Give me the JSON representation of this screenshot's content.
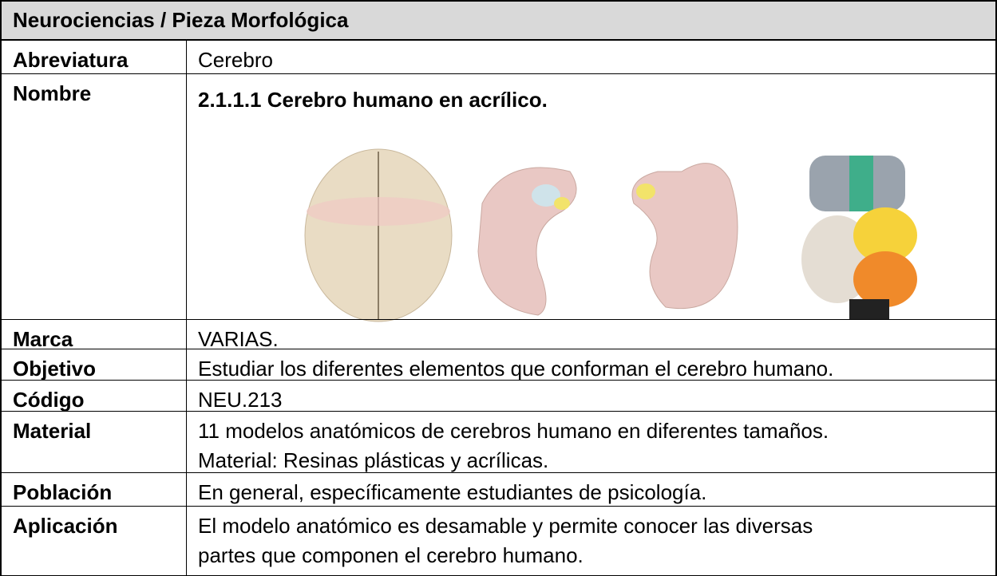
{
  "header": {
    "title": "Neurociencias / Pieza Morfológica"
  },
  "rows": [
    {
      "label": "Abreviatura",
      "value": "Cerebro"
    },
    {
      "label": "Nombre",
      "value": "2.1.1.1  Cerebro humano en acrílico."
    },
    {
      "label": "Marca",
      "value": "VARIAS."
    },
    {
      "label": "Objetivo",
      "value": "Estudiar los diferentes elementos que conforman el cerebro humano."
    },
    {
      "label": "Código",
      "value": "NEU.213"
    },
    {
      "label": "Material",
      "value": [
        "11 modelos anatómicos de cerebros humano en diferentes tamaños.",
        "Material: Resinas plásticas y acrílicas."
      ]
    },
    {
      "label": "Población",
      "value": "En general, específicamente estudiantes de psicología."
    },
    {
      "label": "Aplicación",
      "value": [
        "El modelo anatómico es desamable y permite conocer las diversas",
        "partes que componen el cerebro humano."
      ]
    }
  ]
}
